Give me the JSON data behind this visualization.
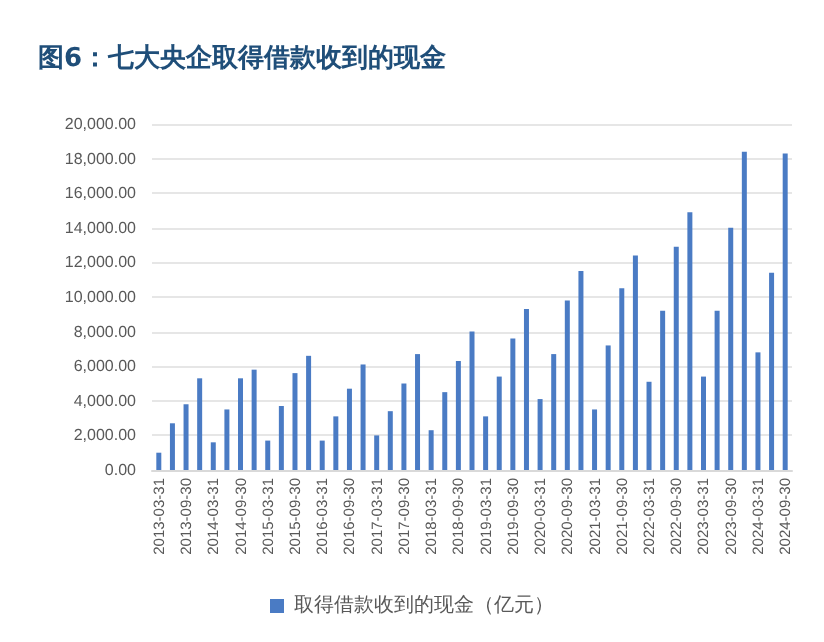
{
  "chart_data": {
    "type": "bar",
    "title": "图6：七大央企取得借款收到的现金",
    "categories": [
      "2013-03-31",
      null,
      "2013-09-30",
      null,
      "2014-03-31",
      null,
      "2014-09-30",
      null,
      "2015-03-31",
      null,
      "2015-09-30",
      null,
      "2016-03-31",
      null,
      "2016-09-30",
      null,
      "2017-03-31",
      null,
      "2017-09-30",
      null,
      "2018-03-31",
      null,
      "2018-09-30",
      null,
      "2019-03-31",
      null,
      "2019-09-30",
      null,
      "2020-03-31",
      null,
      "2020-09-30",
      null,
      "2021-03-31",
      null,
      "2021-09-30",
      null,
      "2022-03-31",
      null,
      "2022-09-30",
      null,
      "2023-03-31",
      null,
      "2023-09-30",
      null,
      "2024-03-31",
      null,
      "2024-09-30"
    ],
    "series": [
      {
        "name": "取得借款收到的现金（亿元）",
        "color": "#4a7bc4",
        "values": [
          1000,
          2700,
          3800,
          5300,
          1600,
          3500,
          5300,
          5800,
          1700,
          3700,
          5600,
          6600,
          1700,
          3100,
          4700,
          6100,
          2000,
          3400,
          5000,
          6700,
          2300,
          4500,
          6300,
          8000,
          3100,
          5400,
          7600,
          9300,
          4100,
          6700,
          9800,
          11500,
          3500,
          7200,
          10500,
          12400,
          5100,
          9200,
          12900,
          14900,
          5400,
          9200,
          14000,
          18400,
          6800,
          11400,
          18300
        ]
      }
    ],
    "ylim": [
      0,
      20000
    ],
    "yticks": [
      {
        "value": 0,
        "label": "0.00"
      },
      {
        "value": 2000,
        "label": "2,000.00"
      },
      {
        "value": 4000,
        "label": "4,000.00"
      },
      {
        "value": 6000,
        "label": "6,000.00"
      },
      {
        "value": 8000,
        "label": "8,000.00"
      },
      {
        "value": 10000,
        "label": "10,000.00"
      },
      {
        "value": 12000,
        "label": "12,000.00"
      },
      {
        "value": 14000,
        "label": "14,000.00"
      },
      {
        "value": 16000,
        "label": "16,000.00"
      },
      {
        "value": 18000,
        "label": "18,000.00"
      },
      {
        "value": 20000,
        "label": "20,000.00"
      }
    ],
    "grid": "y",
    "legend": "bottom"
  }
}
